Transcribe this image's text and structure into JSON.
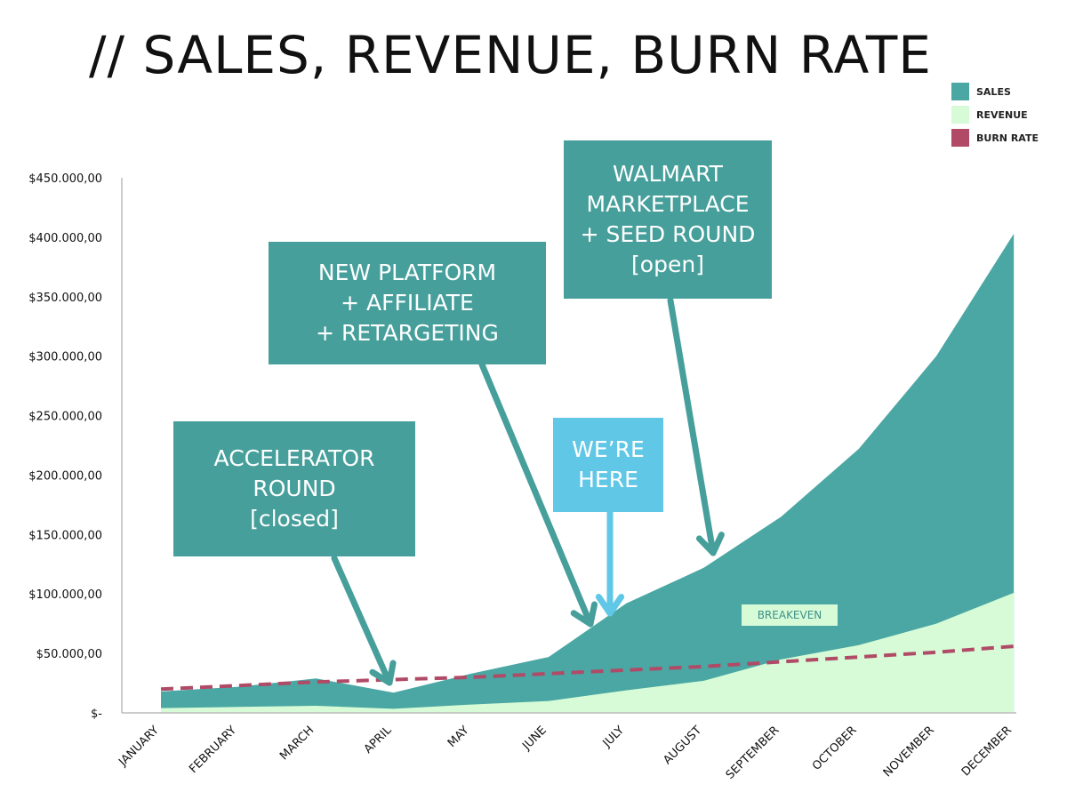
{
  "title": "// SALES, REVENUE, BURN RATE",
  "colors": {
    "sales": "#4aa7a4",
    "revenue": "#d6fbd6",
    "burn_rate": "#b04a66",
    "callout": "#469f9b",
    "here": "#61c7e6",
    "breakeven_bg": "#d6fbd6",
    "breakeven_text": "#3c8f8b"
  },
  "legend": [
    {
      "label": "SALES",
      "color": "#4aa7a4"
    },
    {
      "label": "REVENUE",
      "color": "#d6fbd6"
    },
    {
      "label": "BURN RATE",
      "color": "#b04a66"
    }
  ],
  "callouts": {
    "accelerator": {
      "lines": [
        "ACCELERATOR",
        "ROUND",
        "[closed]"
      ],
      "points_to": "APRIL"
    },
    "platform": {
      "lines": [
        "NEW PLATFORM",
        "+ AFFILIATE",
        "+ RETARGETING"
      ],
      "points_to": "JUNE"
    },
    "here": {
      "lines": [
        "WE’RE",
        "HERE"
      ],
      "points_to": "JULY"
    },
    "walmart": {
      "lines": [
        "WALMART",
        "MARKETPLACE",
        "+ SEED ROUND",
        "[open]"
      ],
      "points_to": "AUGUST"
    }
  },
  "breakeven_label": "BREAKEVEN",
  "chart_data": {
    "type": "area",
    "categories": [
      "JANUARY",
      "FEBRUARY",
      "MARCH",
      "APRIL",
      "MAY",
      "JUNE",
      "JULY",
      "AUGUST",
      "SEPTEMBER",
      "OCTOBER",
      "NOVEMBER",
      "DECEMBER"
    ],
    "series": [
      {
        "name": "SALES",
        "type": "area",
        "values": [
          18000,
          22000,
          29000,
          17000,
          33000,
          47000,
          92000,
          122000,
          165000,
          222000,
          300000,
          403000
        ]
      },
      {
        "name": "REVENUE",
        "type": "area",
        "values": [
          4000,
          5000,
          6000,
          3500,
          7000,
          10000,
          19000,
          27000,
          45000,
          57000,
          75000,
          101000
        ]
      },
      {
        "name": "BURN RATE",
        "type": "dashed-line",
        "values": [
          20000,
          23000,
          26000,
          28000,
          30000,
          33000,
          36000,
          39000,
          43000,
          47000,
          51000,
          56000
        ]
      }
    ],
    "y_ticks": [
      {
        "value": 0,
        "label": "$-"
      },
      {
        "value": 50000,
        "label": "$50.000,00"
      },
      {
        "value": 100000,
        "label": "$100.000,00"
      },
      {
        "value": 150000,
        "label": "$150.000,00"
      },
      {
        "value": 200000,
        "label": "$200.000,00"
      },
      {
        "value": 250000,
        "label": "$250.000,00"
      },
      {
        "value": 300000,
        "label": "$300.000,00"
      },
      {
        "value": 350000,
        "label": "$350.000,00"
      },
      {
        "value": 400000,
        "label": "$400.000,00"
      },
      {
        "value": 450000,
        "label": "$450.000,00"
      }
    ],
    "ylim": [
      0,
      450000
    ],
    "grid": false,
    "legend_position": "top-right",
    "annotations": [
      {
        "text": "BREAKEVEN",
        "x": "SEPTEMBER"
      }
    ]
  }
}
